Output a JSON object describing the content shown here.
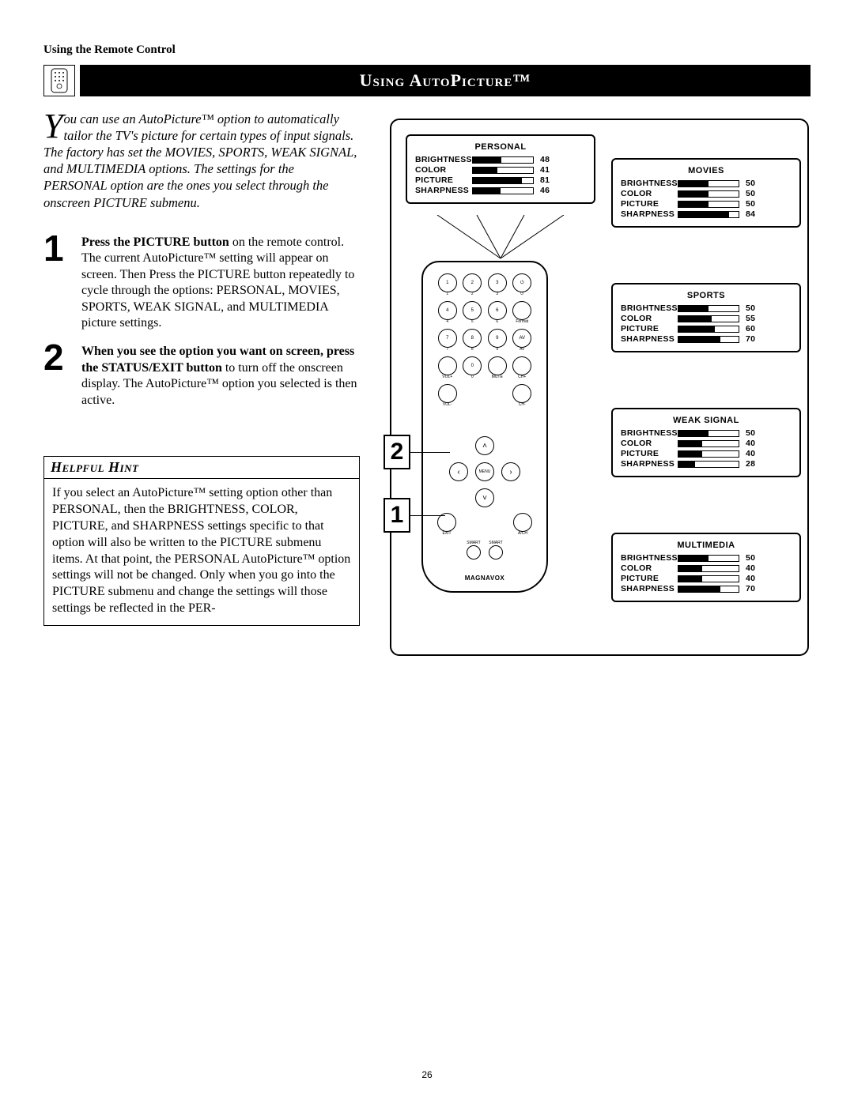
{
  "header": "Using the Remote Control",
  "title": "Using AutoPicture™",
  "intro_dropcap": "Y",
  "intro_text": "ou can use an AutoPicture™ option to automatically tailor the TV's picture for certain types of input signals. The factory has set the MOVIES, SPORTS, WEAK SIGNAL, and MULTIMEDIA options. The settings for the PERSONAL option are the ones you select through the onscreen PICTURE submenu.",
  "steps": [
    {
      "num": "1",
      "bold": "Press the PICTURE button",
      "rest": " on the remote control. The current AutoPicture™ setting will appear on screen. Then Press the PICTURE button repeatedly to cycle through the options: PERSONAL, MOVIES, SPORTS, WEAK SIGNAL, and MULTIMEDIA picture settings."
    },
    {
      "num": "2",
      "bold": "When you see the option you want on screen, press the STATUS/EXIT button",
      "rest": " to turn off the onscreen display. The AutoPicture™ option you selected is then active."
    }
  ],
  "hint_title": "Helpful Hint",
  "hint_body": "If you select an AutoPicture™ setting option other than PERSONAL, then the BRIGHTNESS, COLOR, PICTURE, and SHARPNESS settings specific to that option will also be written to the PICTURE submenu items. At that point, the PERSONAL AutoPicture™ option settings will not be changed. Only when you go into the PICTURE submenu and change the settings will those settings be reflected in the PER-",
  "panels": {
    "personal": {
      "title": "PERSONAL",
      "rows": [
        {
          "label": "BRIGHTNESS",
          "val": "48",
          "pct": 48
        },
        {
          "label": "COLOR",
          "val": "41",
          "pct": 41
        },
        {
          "label": "PICTURE",
          "val": "81",
          "pct": 81
        },
        {
          "label": "SHARPNESS",
          "val": "46",
          "pct": 46
        }
      ]
    },
    "movies": {
      "title": "MOVIES",
      "rows": [
        {
          "label": "BRIGHTNESS",
          "val": "50",
          "pct": 50
        },
        {
          "label": "COLOR",
          "val": "50",
          "pct": 50
        },
        {
          "label": "PICTURE",
          "val": "50",
          "pct": 50
        },
        {
          "label": "SHARPNESS",
          "val": "84",
          "pct": 84
        }
      ]
    },
    "sports": {
      "title": "SPORTS",
      "rows": [
        {
          "label": "BRIGHTNESS",
          "val": "50",
          "pct": 50
        },
        {
          "label": "COLOR",
          "val": "55",
          "pct": 55
        },
        {
          "label": "PICTURE",
          "val": "60",
          "pct": 60
        },
        {
          "label": "SHARPNESS",
          "val": "70",
          "pct": 70
        }
      ]
    },
    "weak": {
      "title": "WEAK  SIGNAL",
      "rows": [
        {
          "label": "BRIGHTNESS",
          "val": "50",
          "pct": 50
        },
        {
          "label": "COLOR",
          "val": "40",
          "pct": 40
        },
        {
          "label": "PICTURE",
          "val": "40",
          "pct": 40
        },
        {
          "label": "SHARPNESS",
          "val": "28",
          "pct": 28
        }
      ]
    },
    "multi": {
      "title": "MULTIMEDIA",
      "rows": [
        {
          "label": "BRIGHTNESS",
          "val": "50",
          "pct": 50
        },
        {
          "label": "COLOR",
          "val": "40",
          "pct": 40
        },
        {
          "label": "PICTURE",
          "val": "40",
          "pct": 40
        },
        {
          "label": "SHARPNESS",
          "val": "70",
          "pct": 70
        }
      ]
    }
  },
  "remote": {
    "row_labels": [
      [
        "1",
        "2",
        "3",
        "⏻"
      ],
      [
        "4",
        "5",
        "6",
        "Format"
      ],
      [
        "7",
        "8",
        "9",
        "AV"
      ],
      [
        "VOL+",
        "0",
        "MUTE",
        "CH+"
      ],
      [
        "VOL-",
        "",
        "",
        "CH-"
      ]
    ],
    "nav_center": "MENU",
    "exit": "EXIT",
    "ach": "A/CH",
    "smart": "SMART",
    "brand": "MAGNAVOX"
  },
  "callouts": {
    "c1": "1",
    "c2": "2"
  },
  "page_number": "26",
  "colors": {
    "black": "#000000",
    "white": "#ffffff"
  }
}
